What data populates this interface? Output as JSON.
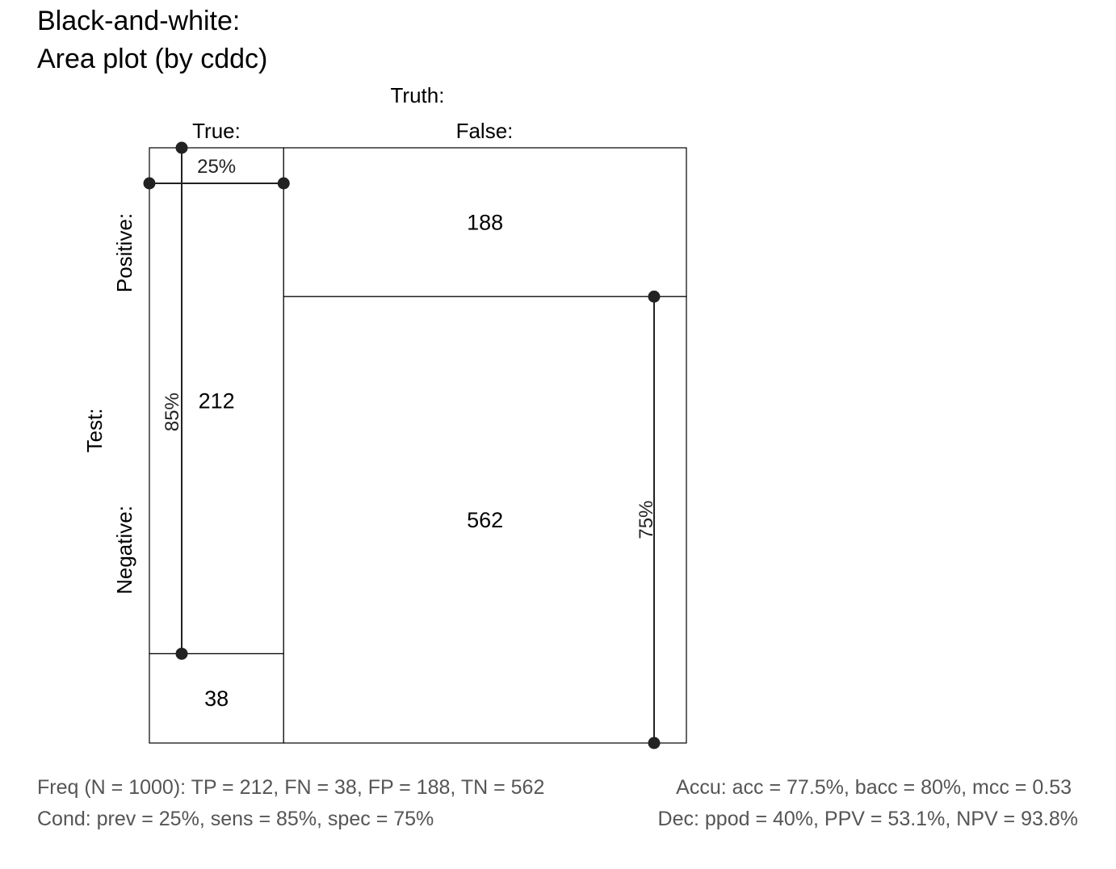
{
  "title": {
    "line1": "Black-and-white:",
    "line2": "Area plot (by cddc)"
  },
  "axis": {
    "truth_label": "Truth:",
    "truth_true": "True:",
    "truth_false": "False:",
    "test_label": "Test:",
    "test_positive": "Positive:",
    "test_negative": "Negative:"
  },
  "chart_data": {
    "type": "area",
    "N": 1000,
    "cells": {
      "tp": {
        "label": "212",
        "value": 212
      },
      "fn": {
        "label": "38",
        "value": 38
      },
      "fp": {
        "label": "188",
        "value": 188
      },
      "tn": {
        "label": "562",
        "value": 562
      }
    },
    "rates": {
      "prev": {
        "label": "25%",
        "value": 0.25
      },
      "sens": {
        "label": "85%",
        "value": 0.85
      },
      "spec": {
        "label": "75%",
        "value": 0.75
      }
    }
  },
  "footer": {
    "freq": "Freq (N = 1000):  TP = 212, FN = 38, FP = 188, TN = 562",
    "accu": "Accu:  acc = 77.5%, bacc = 80%, mcc = 0.53",
    "cond": "Cond:  prev = 25%, sens = 85%, spec = 75%",
    "dec": "Dec:  ppod = 40%, PPV = 53.1%, NPV = 93.8%"
  }
}
